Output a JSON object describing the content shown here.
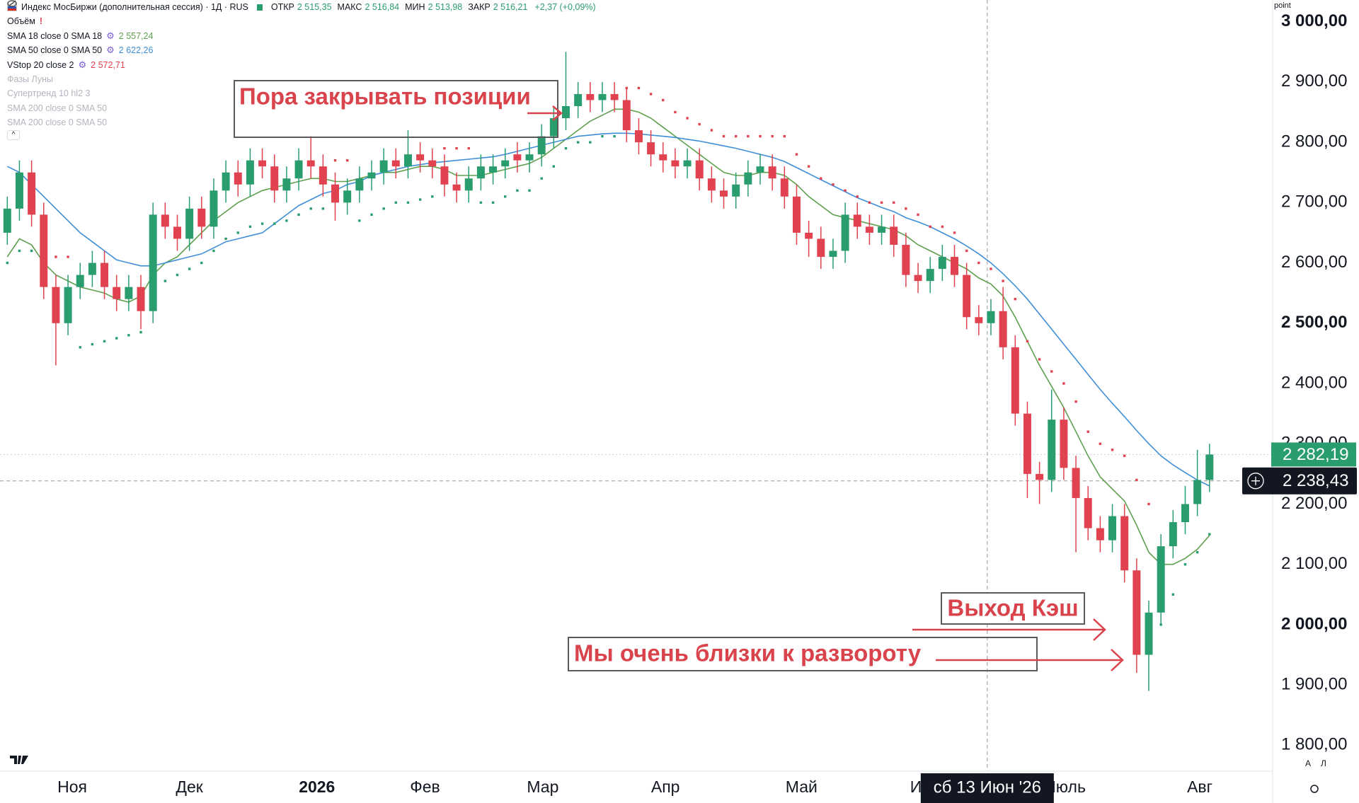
{
  "chart_data": {
    "type": "candlestick",
    "legend": {
      "title": "Индекс МосБиржи (дополнительная сессия) · 1Д · RUS",
      "ohlc": [
        {
          "label": "ОТКР",
          "value": "2 515,35"
        },
        {
          "label": "МАКС",
          "value": "2 516,84"
        },
        {
          "label": "МИН",
          "value": "2 513,98"
        },
        {
          "label": "ЗАКР",
          "value": "2 516,21"
        }
      ],
      "change": "+2,37 (+0,09%)",
      "volume": "Объём",
      "hidden_indicators": [
        "Фазы Луны",
        "Супертренд 10 hl2 3",
        "SMA 200 close 0 SMA 50",
        "SMA 200 close 0 SMA 50"
      ]
    },
    "up_color": "#2a9d6e",
    "down_color": "#e0434f",
    "open": [
      2650,
      2690,
      2750,
      2680,
      2560,
      2500,
      2560,
      2580,
      2600,
      2560,
      2540,
      2560,
      2520,
      2680,
      2660,
      2640,
      2690,
      2660,
      2720,
      2750,
      2730,
      2770,
      2760,
      2720,
      2740,
      2770,
      2760,
      2730,
      2700,
      2720,
      2740,
      2750,
      2770,
      2760,
      2780,
      2770,
      2760,
      2730,
      2720,
      2740,
      2750,
      2760,
      2780,
      2770,
      2780,
      2810,
      2840,
      2860,
      2880,
      2870,
      2880,
      2870,
      2820,
      2800,
      2780,
      2770,
      2760,
      2770,
      2740,
      2720,
      2710,
      2730,
      2750,
      2760,
      2740,
      2710,
      2650,
      2640,
      2610,
      2620,
      2680,
      2660,
      2650,
      2660,
      2630,
      2580,
      2570,
      2590,
      2610,
      2580,
      2510,
      2500,
      2520,
      2460,
      2350,
      2250,
      2240,
      2340,
      2260,
      2210,
      2160,
      2140,
      2180,
      2090,
      1950,
      2020,
      2130,
      2170,
      2200,
      2240
    ],
    "high": [
      2710,
      2770,
      2770,
      2700,
      2580,
      2580,
      2600,
      2620,
      2620,
      2580,
      2580,
      2580,
      2700,
      2700,
      2680,
      2710,
      2710,
      2740,
      2770,
      2770,
      2790,
      2790,
      2780,
      2760,
      2790,
      2810,
      2780,
      2750,
      2740,
      2760,
      2770,
      2790,
      2790,
      2820,
      2800,
      2790,
      2780,
      2750,
      2760,
      2780,
      2780,
      2790,
      2800,
      2800,
      2830,
      2860,
      2950,
      2900,
      2900,
      2900,
      2900,
      2890,
      2840,
      2820,
      2800,
      2790,
      2790,
      2790,
      2760,
      2740,
      2750,
      2770,
      2780,
      2780,
      2760,
      2730,
      2670,
      2660,
      2640,
      2700,
      2700,
      2680,
      2680,
      2680,
      2650,
      2600,
      2610,
      2630,
      2630,
      2600,
      2530,
      2540,
      2560,
      2480,
      2370,
      2270,
      2390,
      2360,
      2280,
      2230,
      2180,
      2200,
      2200,
      2110,
      2040,
      2150,
      2190,
      2230,
      2290,
      2300
    ],
    "low": [
      2630,
      2670,
      2660,
      2540,
      2430,
      2480,
      2540,
      2560,
      2540,
      2520,
      2520,
      2490,
      2500,
      2640,
      2620,
      2620,
      2640,
      2640,
      2700,
      2710,
      2710,
      2740,
      2700,
      2700,
      2720,
      2740,
      2710,
      2670,
      2680,
      2700,
      2720,
      2730,
      2740,
      2740,
      2750,
      2740,
      2710,
      2700,
      2700,
      2720,
      2730,
      2740,
      2750,
      2750,
      2760,
      2790,
      2820,
      2840,
      2850,
      2850,
      2850,
      2800,
      2780,
      2760,
      2750,
      2740,
      2740,
      2720,
      2700,
      2690,
      2690,
      2710,
      2730,
      2720,
      2690,
      2630,
      2610,
      2590,
      2590,
      2600,
      2640,
      2630,
      2630,
      2610,
      2560,
      2550,
      2550,
      2570,
      2560,
      2490,
      2480,
      2480,
      2440,
      2330,
      2210,
      2200,
      2220,
      2240,
      2120,
      2140,
      2120,
      2120,
      2070,
      1920,
      1890,
      2000,
      2110,
      2150,
      2180,
      2220
    ],
    "close": [
      2690,
      2750,
      2680,
      2560,
      2500,
      2560,
      2580,
      2600,
      2560,
      2540,
      2560,
      2520,
      2680,
      2660,
      2640,
      2690,
      2660,
      2720,
      2750,
      2730,
      2770,
      2760,
      2720,
      2740,
      2770,
      2760,
      2730,
      2700,
      2720,
      2740,
      2750,
      2770,
      2760,
      2780,
      2770,
      2760,
      2730,
      2720,
      2740,
      2760,
      2760,
      2770,
      2770,
      2780,
      2810,
      2840,
      2860,
      2880,
      2870,
      2880,
      2870,
      2820,
      2800,
      2780,
      2770,
      2760,
      2770,
      2740,
      2720,
      2710,
      2730,
      2750,
      2760,
      2740,
      2710,
      2650,
      2640,
      2610,
      2620,
      2680,
      2660,
      2650,
      2660,
      2630,
      2580,
      2570,
      2590,
      2610,
      2580,
      2510,
      2500,
      2520,
      2460,
      2350,
      2250,
      2240,
      2340,
      2260,
      2210,
      2160,
      2140,
      2180,
      2090,
      1950,
      2020,
      2130,
      2170,
      2200,
      2240,
      2282.19
    ],
    "series": [
      {
        "name": "SMA 18 close 0 SMA 18",
        "legend_value": "2 557,24",
        "color": "#5ea04e",
        "style": "line",
        "values": [
          2610,
          2640,
          2630,
          2600,
          2580,
          2570,
          2560,
          2555,
          2550,
          2540,
          2535,
          2545,
          2580,
          2600,
          2610,
          2630,
          2650,
          2670,
          2685,
          2700,
          2710,
          2720,
          2725,
          2730,
          2735,
          2740,
          2740,
          2735,
          2735,
          2740,
          2745,
          2750,
          2750,
          2755,
          2760,
          2760,
          2755,
          2745,
          2745,
          2745,
          2750,
          2755,
          2760,
          2765,
          2775,
          2790,
          2805,
          2820,
          2835,
          2845,
          2855,
          2855,
          2850,
          2840,
          2825,
          2810,
          2795,
          2780,
          2765,
          2750,
          2745,
          2745,
          2750,
          2750,
          2745,
          2730,
          2710,
          2695,
          2680,
          2675,
          2670,
          2665,
          2660,
          2655,
          2645,
          2630,
          2620,
          2610,
          2600,
          2590,
          2575,
          2565,
          2545,
          2510,
          2470,
          2430,
          2395,
          2360,
          2320,
          2280,
          2245,
          2225,
          2205,
          2165,
          2120,
          2100,
          2100,
          2110,
          2125,
          2148
        ]
      },
      {
        "name": "SMA 50 close 0 SMA 50",
        "legend_value": "2 622,26",
        "color": "#3f8fd8",
        "style": "line",
        "values": [
          2760,
          2750,
          2730,
          2710,
          2690,
          2670,
          2650,
          2635,
          2620,
          2605,
          2600,
          2595,
          2595,
          2600,
          2605,
          2610,
          2615,
          2625,
          2635,
          2640,
          2645,
          2650,
          2665,
          2680,
          2695,
          2705,
          2715,
          2720,
          2730,
          2735,
          2745,
          2750,
          2755,
          2760,
          2763,
          2766,
          2768,
          2770,
          2772,
          2774,
          2776,
          2780,
          2785,
          2790,
          2795,
          2800,
          2805,
          2810,
          2812,
          2814,
          2815,
          2815,
          2814,
          2812,
          2810,
          2808,
          2805,
          2802,
          2798,
          2794,
          2790,
          2785,
          2780,
          2775,
          2768,
          2758,
          2748,
          2738,
          2728,
          2718,
          2708,
          2700,
          2692,
          2685,
          2675,
          2668,
          2660,
          2650,
          2640,
          2628,
          2615,
          2600,
          2582,
          2562,
          2540,
          2515,
          2490,
          2465,
          2440,
          2415,
          2390,
          2367,
          2345,
          2322,
          2300,
          2280,
          2265,
          2252,
          2240,
          2230
        ]
      },
      {
        "name": "VStop 20 close 2",
        "legend_value": "2 572,71",
        "color": "#e0434f",
        "up_color": "#2a9d6e",
        "style": "dots",
        "values": [
          2600,
          2620,
          2620,
          2610,
          2610,
          2610,
          2460,
          2465,
          2470,
          2475,
          2480,
          2485,
          2560,
          2570,
          2580,
          2590,
          2600,
          2620,
          2640,
          2650,
          2660,
          2665,
          2665,
          2670,
          2680,
          2690,
          2690,
          2770,
          2770,
          2670,
          2680,
          2690,
          2700,
          2700,
          2705,
          2710,
          2790,
          2790,
          2790,
          2700,
          2700,
          2710,
          2720,
          2720,
          2740,
          2760,
          2790,
          2800,
          2800,
          2810,
          2810,
          2890,
          2890,
          2880,
          2870,
          2850,
          2840,
          2830,
          2820,
          2810,
          2810,
          2810,
          2810,
          2810,
          2810,
          2780,
          2760,
          2740,
          2730,
          2720,
          2710,
          2700,
          2700,
          2700,
          2690,
          2680,
          2660,
          2660,
          2650,
          2620,
          2600,
          2590,
          2570,
          2540,
          2470,
          2440,
          2420,
          2400,
          2370,
          2320,
          2300,
          2290,
          2280,
          2240,
          2200,
          2000,
          2050,
          2100,
          2120,
          2150
        ]
      }
    ],
    "xlim": [
      -0.6,
      104.2
    ],
    "xticks": [
      {
        "value": 5.35,
        "label": "Ноя"
      },
      {
        "value": 15,
        "label": "Дек"
      },
      {
        "value": 25.5,
        "label": "2026"
      },
      {
        "value": 34.4,
        "label": "Фев"
      },
      {
        "value": 44.1,
        "label": "Мар"
      },
      {
        "value": 54.2,
        "label": "Апр"
      },
      {
        "value": 65.4,
        "label": "Май"
      },
      {
        "value": 75.7,
        "label": "Июн"
      },
      {
        "value": 87.1,
        "label": "Июль"
      },
      {
        "value": 98.2,
        "label": "Авг"
      }
    ],
    "ylim": [
      1757,
      3036
    ],
    "yticks": [
      {
        "value": 1800,
        "label": "1 800,00"
      },
      {
        "value": 1900,
        "label": "1 900,00"
      },
      {
        "value": 2000,
        "label": "2 000,00"
      },
      {
        "value": 2100,
        "label": "2 100,00"
      },
      {
        "value": 2200,
        "label": "2 200,00"
      },
      {
        "value": 2300,
        "label": "2 300,00"
      },
      {
        "value": 2400,
        "label": "2 400,00"
      },
      {
        "value": 2500,
        "label": "2 500,00"
      },
      {
        "value": 2600,
        "label": "2 600,00"
      },
      {
        "value": 2700,
        "label": "2 700,00"
      },
      {
        "value": 2800,
        "label": "2 800,00"
      },
      {
        "value": 2900,
        "label": "2 900,00"
      },
      {
        "value": 3000,
        "label": "3 000,00"
      }
    ],
    "y_unit": "point",
    "last_price": {
      "value": 2282.19,
      "label": "2 282,19"
    },
    "crosshair": {
      "x": 80.7,
      "price": {
        "value": 2238.43,
        "label": "2 238,43"
      },
      "date_label": "сб 13 Июн '26"
    },
    "annotations": [
      "Пора закрывать позиции",
      "Выход Кэш",
      "Мы очень близки к развороту"
    ],
    "scale_buttons": [
      "A",
      "Л"
    ]
  }
}
